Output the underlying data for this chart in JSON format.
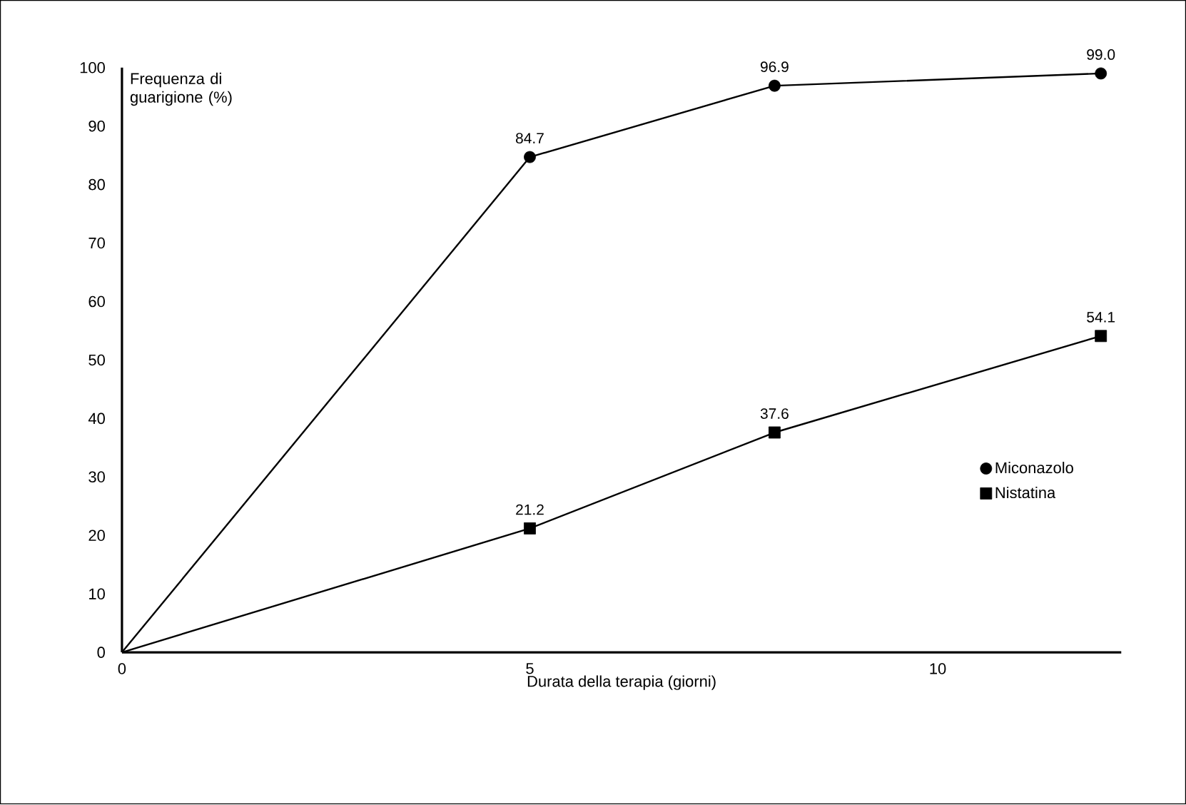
{
  "chart_data": {
    "type": "line",
    "xlabel": "Durata della terapia (giorni)",
    "ylabel": "Frequenza di guarigione (%)",
    "x": [
      0,
      5,
      8,
      12
    ],
    "series": [
      {
        "name": "Miconazolo",
        "color": "#000000",
        "values": [
          0,
          84.7,
          96.9,
          99.0
        ],
        "value_labels": [
          null,
          "84.7",
          "96.9",
          "99.0"
        ],
        "marker": "circle"
      },
      {
        "name": "Nistatina",
        "color": "#000000",
        "values": [
          0,
          21.2,
          37.6,
          54.1
        ],
        "value_labels": [
          null,
          "21.2",
          "37.6",
          "54.1"
        ],
        "marker": "square"
      }
    ],
    "xlim": [
      0,
      12.25
    ],
    "ylim": [
      0,
      100
    ],
    "xticks": [
      0,
      5,
      10
    ],
    "yticks": [
      0,
      10,
      20,
      30,
      40,
      50,
      60,
      70,
      80,
      90,
      100
    ],
    "grid": false,
    "legend": "bottom right",
    "line_style": "solid"
  }
}
